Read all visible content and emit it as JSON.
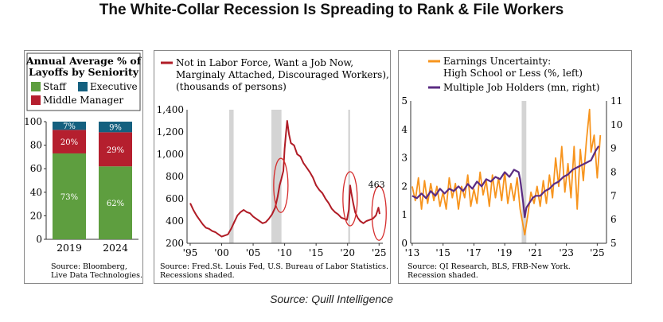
{
  "title": "The White-Collar Recession Is Spreading to Rank & File Workers",
  "source_line": "Source: Quill Intelligence",
  "colors": {
    "staff": "#5e9e3f",
    "middle_manager": "#b51f2e",
    "executive": "#14607f",
    "labor_line": "#b01c26",
    "earnings_line": "#f7941d",
    "jobholders_line": "#5b2c83",
    "recession": "#d4d4d4",
    "circle": "#d52b2b"
  },
  "chart_data": [
    {
      "type": "bar",
      "stacked": true,
      "legend_title": "Annual Average % of Layoffs by Seniority",
      "legend": [
        "Staff",
        "Executive",
        "Middle Manager"
      ],
      "categories": [
        "2019",
        "2024"
      ],
      "series": [
        {
          "name": "Staff",
          "values": [
            73,
            62
          ],
          "labels": [
            "73%",
            "62%"
          ]
        },
        {
          "name": "Middle Manager",
          "values": [
            20,
            29
          ],
          "labels": [
            "20%",
            "29%"
          ]
        },
        {
          "name": "Executive",
          "values": [
            7,
            9
          ],
          "labels": [
            "7%",
            "9%"
          ]
        }
      ],
      "ylim": [
        0,
        100
      ],
      "yticks": [
        "0",
        "20",
        "40",
        "60",
        "80",
        "100"
      ],
      "source": [
        "Source: Bloomberg,",
        "Live Data Technologies."
      ]
    },
    {
      "type": "line",
      "legend": [
        "Not in Labor Force, Want a Job Now,",
        "Marginaly Attached, Discouraged Workers),",
        "(thousands of persons)"
      ],
      "xlim": [
        1994.5,
        2025.6
      ],
      "ylim": [
        200,
        1400
      ],
      "yticks": [
        "200",
        "400",
        "600",
        "800",
        "1,000",
        "1,200",
        "1,400"
      ],
      "xticks": [
        "'95",
        "'00",
        "'05",
        "'10",
        "'15",
        "'20",
        "'25"
      ],
      "recessions": [
        [
          2001.2,
          2001.9
        ],
        [
          2007.9,
          2009.5
        ],
        [
          2020.1,
          2020.4
        ]
      ],
      "annotation": "463",
      "series": [
        {
          "name": "Not in Labor Force, Want a Job Now",
          "points": [
            [
              1995.0,
              560
            ],
            [
              1995.5,
              500
            ],
            [
              1996.0,
              450
            ],
            [
              1996.5,
              410
            ],
            [
              1997.0,
              370
            ],
            [
              1997.5,
              340
            ],
            [
              1998.0,
              330
            ],
            [
              1998.5,
              310
            ],
            [
              1999.0,
              300
            ],
            [
              1999.5,
              280
            ],
            [
              2000.0,
              260
            ],
            [
              2000.5,
              270
            ],
            [
              2001.0,
              280
            ],
            [
              2001.5,
              330
            ],
            [
              2002.0,
              390
            ],
            [
              2002.5,
              450
            ],
            [
              2003.0,
              480
            ],
            [
              2003.5,
              500
            ],
            [
              2004.0,
              480
            ],
            [
              2004.5,
              470
            ],
            [
              2005.0,
              440
            ],
            [
              2005.5,
              420
            ],
            [
              2006.0,
              400
            ],
            [
              2006.5,
              380
            ],
            [
              2007.0,
              390
            ],
            [
              2007.5,
              420
            ],
            [
              2008.0,
              460
            ],
            [
              2008.5,
              520
            ],
            [
              2008.9,
              620
            ],
            [
              2009.2,
              720
            ],
            [
              2009.5,
              780
            ],
            [
              2009.8,
              850
            ],
            [
              2010.0,
              1050
            ],
            [
              2010.2,
              1180
            ],
            [
              2010.4,
              1300
            ],
            [
              2010.7,
              1180
            ],
            [
              2011.0,
              1100
            ],
            [
              2011.5,
              1080
            ],
            [
              2012.0,
              1000
            ],
            [
              2012.5,
              980
            ],
            [
              2013.0,
              920
            ],
            [
              2013.5,
              880
            ],
            [
              2014.0,
              840
            ],
            [
              2014.5,
              790
            ],
            [
              2015.0,
              720
            ],
            [
              2015.5,
              680
            ],
            [
              2016.0,
              650
            ],
            [
              2016.5,
              600
            ],
            [
              2017.0,
              560
            ],
            [
              2017.5,
              510
            ],
            [
              2018.0,
              480
            ],
            [
              2018.5,
              460
            ],
            [
              2019.0,
              430
            ],
            [
              2019.5,
              420
            ],
            [
              2019.9,
              410
            ],
            [
              2020.2,
              500
            ],
            [
              2020.4,
              720
            ],
            [
              2020.6,
              650
            ],
            [
              2020.9,
              560
            ],
            [
              2021.2,
              480
            ],
            [
              2021.6,
              430
            ],
            [
              2022.0,
              400
            ],
            [
              2022.5,
              380
            ],
            [
              2023.0,
              400
            ],
            [
              2023.5,
              410
            ],
            [
              2024.0,
              420
            ],
            [
              2024.5,
              450
            ],
            [
              2024.9,
              520
            ],
            [
              2025.1,
              463
            ]
          ]
        }
      ],
      "source": [
        "Source: Fred.St. Louis Fed, U.S. Bureau of Labor Statistics.",
        "Recessions shaded."
      ]
    },
    {
      "type": "line",
      "legend": [
        "Earnings Uncertainty:",
        "High School or Less (%, left)",
        "Multiple Job Holders (mn, right)"
      ],
      "xlim": [
        2012.9,
        2025.6
      ],
      "ylim_left": [
        0,
        5
      ],
      "ylim_right": [
        5,
        11
      ],
      "yticks_left": [
        "0",
        "1",
        "2",
        "3",
        "4",
        "5"
      ],
      "yticks_right": [
        "5",
        "6",
        "7",
        "8",
        "9",
        "10",
        "11"
      ],
      "xticks": [
        "'13",
        "'15",
        "'17",
        "'19",
        "'21",
        "'23",
        "'25"
      ],
      "recessions": [
        [
          2020.1,
          2020.4
        ]
      ],
      "series": [
        {
          "name": "Earnings Uncertainty: High School or Less (%, left)",
          "axis": "left",
          "points": [
            [
              2013.0,
              2.0
            ],
            [
              2013.2,
              1.5
            ],
            [
              2013.4,
              2.3
            ],
            [
              2013.6,
              1.2
            ],
            [
              2013.8,
              2.2
            ],
            [
              2014.0,
              1.4
            ],
            [
              2014.2,
              2.1
            ],
            [
              2014.4,
              1.5
            ],
            [
              2014.6,
              2.0
            ],
            [
              2014.8,
              1.3
            ],
            [
              2015.0,
              1.8
            ],
            [
              2015.2,
              1.2
            ],
            [
              2015.4,
              2.3
            ],
            [
              2015.6,
              1.6
            ],
            [
              2015.8,
              2.1
            ],
            [
              2016.0,
              1.2
            ],
            [
              2016.2,
              2.0
            ],
            [
              2016.4,
              1.6
            ],
            [
              2016.6,
              2.4
            ],
            [
              2016.8,
              1.3
            ],
            [
              2017.0,
              1.9
            ],
            [
              2017.2,
              1.4
            ],
            [
              2017.4,
              2.5
            ],
            [
              2017.6,
              1.7
            ],
            [
              2017.8,
              2.2
            ],
            [
              2018.0,
              1.3
            ],
            [
              2018.2,
              2.4
            ],
            [
              2018.4,
              1.6
            ],
            [
              2018.6,
              2.3
            ],
            [
              2018.8,
              1.5
            ],
            [
              2019.0,
              2.5
            ],
            [
              2019.2,
              1.4
            ],
            [
              2019.4,
              2.1
            ],
            [
              2019.6,
              1.5
            ],
            [
              2019.8,
              2.3
            ],
            [
              2020.0,
              1.2
            ],
            [
              2020.3,
              0.3
            ],
            [
              2020.5,
              1.0
            ],
            [
              2020.7,
              1.8
            ],
            [
              2020.9,
              1.4
            ],
            [
              2021.1,
              2.0
            ],
            [
              2021.3,
              1.3
            ],
            [
              2021.5,
              2.2
            ],
            [
              2021.7,
              1.4
            ],
            [
              2021.9,
              2.4
            ],
            [
              2022.1,
              1.6
            ],
            [
              2022.3,
              3.0
            ],
            [
              2022.5,
              2.0
            ],
            [
              2022.7,
              3.4
            ],
            [
              2022.9,
              1.8
            ],
            [
              2023.1,
              2.8
            ],
            [
              2023.3,
              1.6
            ],
            [
              2023.5,
              3.4
            ],
            [
              2023.7,
              1.2
            ],
            [
              2023.9,
              3.3
            ],
            [
              2024.1,
              2.2
            ],
            [
              2024.3,
              3.6
            ],
            [
              2024.5,
              4.7
            ],
            [
              2024.6,
              3.2
            ],
            [
              2024.8,
              3.8
            ],
            [
              2025.0,
              2.3
            ],
            [
              2025.2,
              3.8
            ]
          ]
        },
        {
          "name": "Multiple Job Holders (mn, right)",
          "axis": "right",
          "points": [
            [
              2013.0,
              7.0
            ],
            [
              2013.3,
              6.9
            ],
            [
              2013.6,
              7.1
            ],
            [
              2013.9,
              6.9
            ],
            [
              2014.2,
              7.2
            ],
            [
              2014.5,
              7.0
            ],
            [
              2014.8,
              7.3
            ],
            [
              2015.1,
              7.1
            ],
            [
              2015.4,
              7.3
            ],
            [
              2015.7,
              7.2
            ],
            [
              2016.0,
              7.4
            ],
            [
              2016.3,
              7.2
            ],
            [
              2016.6,
              7.5
            ],
            [
              2016.9,
              7.3
            ],
            [
              2017.2,
              7.6
            ],
            [
              2017.5,
              7.4
            ],
            [
              2017.8,
              7.7
            ],
            [
              2018.1,
              7.6
            ],
            [
              2018.4,
              7.8
            ],
            [
              2018.7,
              7.7
            ],
            [
              2019.0,
              8.0
            ],
            [
              2019.3,
              7.8
            ],
            [
              2019.6,
              8.1
            ],
            [
              2019.9,
              8.0
            ],
            [
              2020.0,
              7.7
            ],
            [
              2020.2,
              6.7
            ],
            [
              2020.3,
              6.1
            ],
            [
              2020.4,
              6.5
            ],
            [
              2020.6,
              6.7
            ],
            [
              2020.8,
              6.9
            ],
            [
              2021.0,
              7.0
            ],
            [
              2021.3,
              7.0
            ],
            [
              2021.6,
              7.2
            ],
            [
              2021.9,
              7.3
            ],
            [
              2022.2,
              7.5
            ],
            [
              2022.5,
              7.6
            ],
            [
              2022.8,
              7.8
            ],
            [
              2023.1,
              7.9
            ],
            [
              2023.4,
              8.1
            ],
            [
              2023.7,
              8.2
            ],
            [
              2024.0,
              8.3
            ],
            [
              2024.3,
              8.4
            ],
            [
              2024.6,
              8.5
            ],
            [
              2024.9,
              8.9
            ],
            [
              2025.1,
              9.1
            ]
          ]
        }
      ],
      "source": [
        "Source: QI Research, BLS, FRB-New York.",
        "Recession shaded."
      ]
    }
  ]
}
